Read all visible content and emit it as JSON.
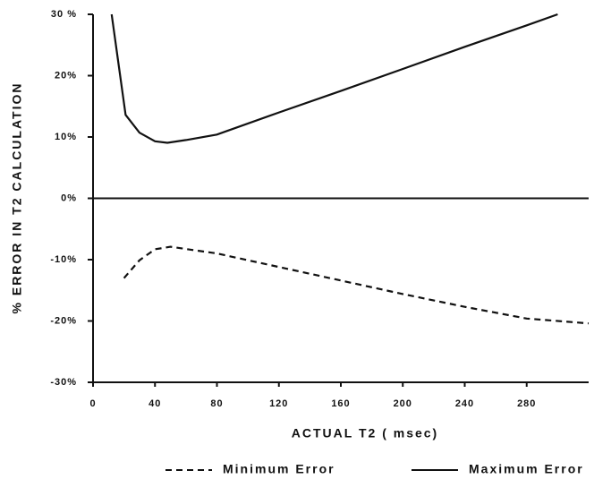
{
  "chart_data": {
    "type": "line",
    "x_label": "ACTUAL T2 ( msec)",
    "y_label": "% ERROR IN T2 CALCULATION",
    "xlim": [
      0,
      320
    ],
    "ylim": [
      -30,
      30
    ],
    "xticks": [
      0,
      40,
      80,
      120,
      160,
      200,
      240,
      280
    ],
    "yticks": [
      {
        "value": 30,
        "label": "30 %"
      },
      {
        "value": 20,
        "label": "20%"
      },
      {
        "value": 10,
        "label": "10%"
      },
      {
        "value": 0,
        "label": "0%"
      },
      {
        "value": -10,
        "label": "-10%"
      },
      {
        "value": -20,
        "label": "-20%"
      },
      {
        "value": -30,
        "label": "-30%"
      }
    ],
    "zero_line": true,
    "series": [
      {
        "name": "Minimum Error",
        "color": "#111111",
        "style": "dashed",
        "x": [
          20,
          30,
          40,
          50,
          80,
          120,
          160,
          200,
          240,
          280,
          320
        ],
        "values": [
          -13,
          -10.1,
          -8.3,
          -7.9,
          -9,
          -11.2,
          -13.4,
          -15.6,
          -17.7,
          -19.6,
          -20.4
        ]
      },
      {
        "name": "Maximum Error",
        "color": "#111111",
        "style": "solid",
        "x": [
          12,
          21,
          30,
          40,
          48,
          60,
          80,
          120,
          160,
          200,
          240,
          280,
          300
        ],
        "values": [
          30,
          13.6,
          10.7,
          9.3,
          9.05,
          9.5,
          10.4,
          14.0,
          17.5,
          21.1,
          24.7,
          28.2,
          30
        ]
      }
    ]
  }
}
